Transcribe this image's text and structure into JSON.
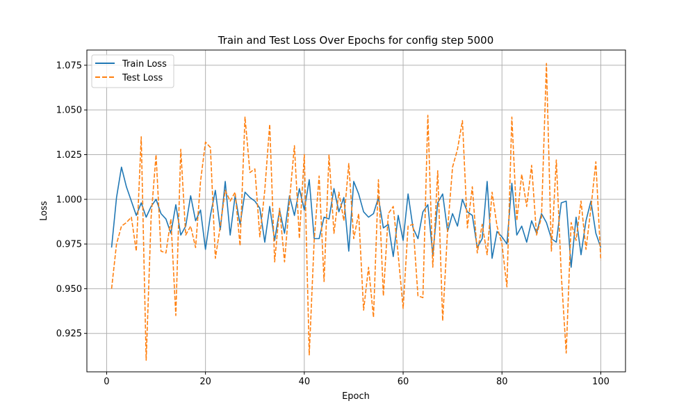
{
  "chart_data": {
    "type": "line",
    "title": "Train and Test Loss Over Epochs for config step 5000",
    "xlabel": "Epoch",
    "ylabel": "Loss",
    "xlim": [
      -4,
      105
    ],
    "ylim": [
      0.9035,
      1.0835
    ],
    "x_ticks": [
      0,
      20,
      40,
      60,
      80,
      100
    ],
    "y_ticks": [
      0.925,
      0.95,
      0.975,
      1.0,
      1.025,
      1.05,
      1.075
    ],
    "x_tick_labels": [
      "0",
      "20",
      "40",
      "60",
      "80",
      "100"
    ],
    "y_tick_labels": [
      "0.925",
      "0.950",
      "0.975",
      "1.000",
      "1.025",
      "1.050",
      "1.075"
    ],
    "grid": true,
    "legend_position": "top-left",
    "x": [
      1,
      2,
      3,
      4,
      5,
      6,
      7,
      8,
      9,
      10,
      11,
      12,
      13,
      14,
      15,
      16,
      17,
      18,
      19,
      20,
      21,
      22,
      23,
      24,
      25,
      26,
      27,
      28,
      29,
      30,
      31,
      32,
      33,
      34,
      35,
      36,
      37,
      38,
      39,
      40,
      41,
      42,
      43,
      44,
      45,
      46,
      47,
      48,
      49,
      50,
      51,
      52,
      53,
      54,
      55,
      56,
      57,
      58,
      59,
      60,
      61,
      62,
      63,
      64,
      65,
      66,
      67,
      68,
      69,
      70,
      71,
      72,
      73,
      74,
      75,
      76,
      77,
      78,
      79,
      80,
      81,
      82,
      83,
      84,
      85,
      86,
      87,
      88,
      89,
      90,
      91,
      92,
      93,
      94,
      95,
      96,
      97,
      98,
      99,
      100
    ],
    "series": [
      {
        "name": "Train Loss",
        "color": "#1f77b4",
        "dash": "solid",
        "values": [
          0.973,
          1.001,
          1.018,
          1.007,
          0.999,
          0.991,
          0.998,
          0.99,
          0.996,
          1.0,
          0.992,
          0.989,
          0.981,
          0.997,
          0.98,
          0.985,
          1.002,
          0.988,
          0.994,
          0.972,
          0.991,
          1.005,
          0.983,
          1.01,
          0.98,
          1.002,
          0.986,
          1.004,
          1.001,
          0.999,
          0.995,
          0.976,
          0.996,
          0.977,
          0.994,
          0.981,
          1.002,
          0.991,
          1.006,
          0.994,
          1.011,
          0.978,
          0.978,
          0.99,
          0.989,
          1.006,
          0.993,
          1.001,
          0.971,
          1.01,
          1.003,
          0.993,
          0.99,
          0.992,
          1.001,
          0.984,
          0.986,
          0.968,
          0.991,
          0.977,
          1.003,
          0.984,
          0.978,
          0.993,
          0.997,
          0.969,
          0.998,
          1.003,
          0.982,
          0.992,
          0.985,
          1.0,
          0.993,
          0.991,
          0.973,
          0.978,
          1.01,
          0.967,
          0.982,
          0.979,
          0.975,
          1.009,
          0.98,
          0.985,
          0.976,
          0.988,
          0.981,
          0.992,
          0.987,
          0.978,
          0.976,
          0.998,
          0.999,
          0.962,
          0.99,
          0.969,
          0.988,
          0.999,
          0.981,
          0.973
        ]
      },
      {
        "name": "Test Loss",
        "color": "#ff7f0e",
        "dash": "dashed",
        "values": [
          0.95,
          0.975,
          0.985,
          0.987,
          0.99,
          0.971,
          1.035,
          0.91,
          0.99,
          1.025,
          0.971,
          0.97,
          0.989,
          0.935,
          1.028,
          0.98,
          0.985,
          0.973,
          1.01,
          1.032,
          1.029,
          0.967,
          0.985,
          1.005,
          0.999,
          1.004,
          0.974,
          1.046,
          1.015,
          1.017,
          0.979,
          1.005,
          1.042,
          0.965,
          0.995,
          0.965,
          0.999,
          1.03,
          0.978,
          1.025,
          0.913,
          0.977,
          1.013,
          0.954,
          1.025,
          0.981,
          1.004,
          0.988,
          1.02,
          0.978,
          0.992,
          0.938,
          0.962,
          0.934,
          1.011,
          0.946,
          0.992,
          0.996,
          0.969,
          0.939,
          0.985,
          0.986,
          0.946,
          0.945,
          1.047,
          0.962,
          1.016,
          0.932,
          0.983,
          1.018,
          1.028,
          1.044,
          0.984,
          1.007,
          0.97,
          0.986,
          0.969,
          1.004,
          0.985,
          0.975,
          0.951,
          1.046,
          0.988,
          1.014,
          0.996,
          1.019,
          0.98,
          0.99,
          1.076,
          0.971,
          1.022,
          0.958,
          0.914,
          0.987,
          0.977,
          0.999,
          0.972,
          0.995,
          1.021,
          0.966
        ]
      }
    ]
  }
}
